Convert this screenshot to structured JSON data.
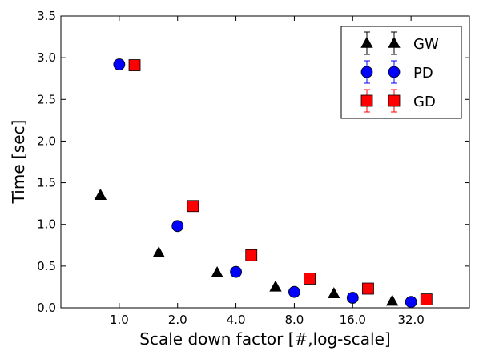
{
  "chart_data": {
    "type": "scatter",
    "title": "",
    "xlabel": "Scale down factor [#,log-scale]",
    "ylabel": "Time [sec]",
    "x_scale": "log2",
    "xlim": [
      0.5,
      64
    ],
    "ylim": [
      0.0,
      3.5
    ],
    "x_ticks": [
      1,
      2,
      4,
      8,
      16,
      32
    ],
    "x_tick_labels": [
      "1.0",
      "2.0",
      "4.0",
      "8.0",
      "16.0",
      "32.0"
    ],
    "y_ticks": [
      0.0,
      0.5,
      1.0,
      1.5,
      2.0,
      2.5,
      3.0,
      3.5
    ],
    "y_tick_labels": [
      "0.0",
      "0.5",
      "1.0",
      "1.5",
      "2.0",
      "2.5",
      "3.0",
      "3.5"
    ],
    "grid": false,
    "legend_position": "top-right",
    "series": [
      {
        "name": "GW",
        "marker": "triangle",
        "color": "#000000",
        "x": [
          0.8,
          1.6,
          3.2,
          6.4,
          12.8,
          25.6
        ],
        "y": [
          1.35,
          0.66,
          0.42,
          0.25,
          0.17,
          0.08
        ]
      },
      {
        "name": "PD",
        "marker": "circle",
        "color": "#0000ff",
        "x": [
          1.0,
          2.0,
          4.0,
          8.0,
          16.0,
          32.0
        ],
        "y": [
          2.92,
          0.98,
          0.43,
          0.19,
          0.12,
          0.07
        ]
      },
      {
        "name": "GD",
        "marker": "square",
        "color": "#ff0000",
        "x": [
          1.2,
          2.4,
          4.8,
          9.6,
          19.2,
          38.4
        ],
        "y": [
          2.91,
          1.22,
          0.63,
          0.35,
          0.23,
          0.1
        ]
      }
    ]
  }
}
